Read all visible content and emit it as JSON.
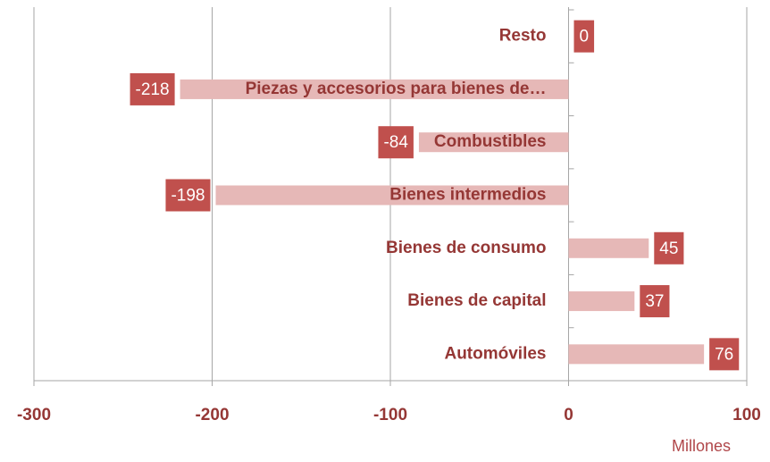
{
  "chart_data": {
    "type": "hbar",
    "categories": [
      "Resto",
      "Piezas y accesorios para bienes de…",
      "Combustibles",
      "Bienes intermedios",
      "Bienes de consumo",
      "Bienes de capital",
      "Automóviles"
    ],
    "values": [
      0,
      -218,
      -84,
      -198,
      45,
      37,
      76
    ],
    "color": "#e6b8b7",
    "label_color": "#c0504d",
    "x_label": "Millones",
    "xlim": [
      -300,
      100
    ],
    "xticks": [
      -300,
      -200,
      -100,
      0,
      100
    ],
    "grid": true
  }
}
